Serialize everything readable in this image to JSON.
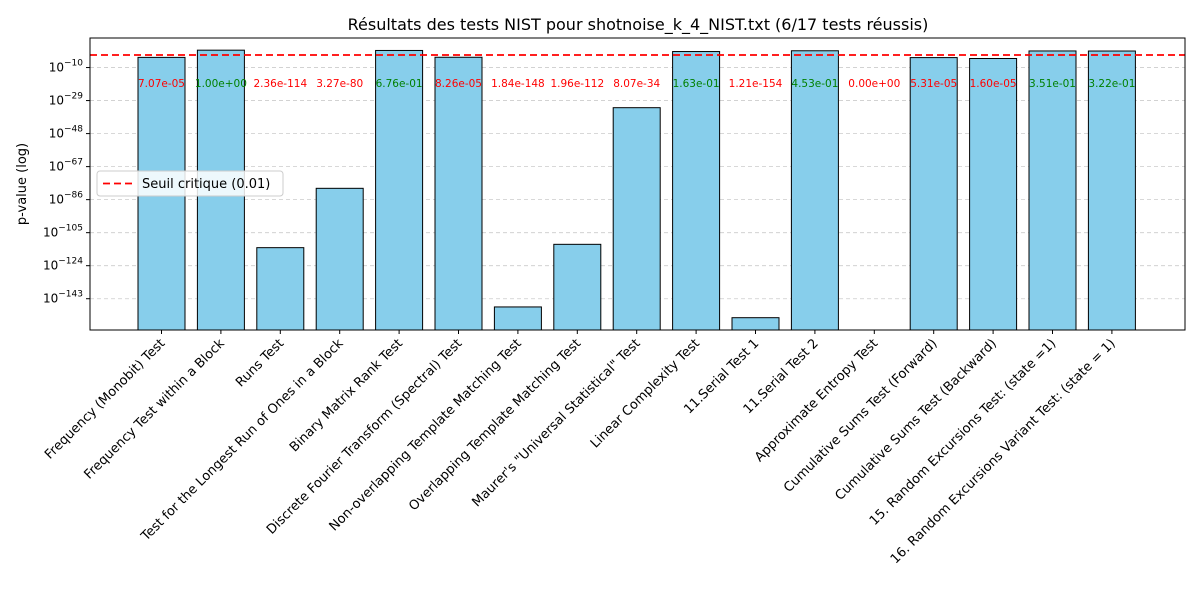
{
  "chart_data": {
    "type": "bar",
    "title": "Résultats des tests NIST pour shotnoise_k_4_NIST.txt (6/17 tests réussis)",
    "xlabel": "",
    "ylabel": "p-value (log)",
    "yscale": "log",
    "ylim_exponent": [
      -161,
      7
    ],
    "yticks_exponent": [
      -143,
      -124,
      -105,
      -86,
      -67,
      -48,
      -29,
      -10
    ],
    "ytick_base": "10",
    "grid": "y-dashed",
    "categories": [
      "Frequency (Monobit) Test",
      "Frequency Test within a Block",
      "Runs Test",
      "Test for the Longest Run of Ones in a Block",
      "Binary Matrix Rank Test",
      "Discrete Fourier Transform (Spectral) Test",
      "Non-overlapping Template Matching Test",
      "Overlapping Template Matching Test",
      "Maurer's \"Universal Statistical\" Test",
      "Linear Complexity Test",
      "11.Serial Test 1",
      "11.Serial Test 2",
      "Approximate Entropy Test",
      "Cumulative Sums Test (Forward)",
      "Cumulative Sums Test (Backward)",
      "15. Random Excursions Test: (state =1)",
      "16. Random Excursions Variant Test: (state = 1)"
    ],
    "values": [
      7.07e-05,
      1.0,
      2.36e-114,
      3.27e-80,
      0.676,
      8.26e-05,
      1.84e-148,
      1.96e-112,
      8.07e-34,
      0.163,
      1.21e-154,
      0.453,
      0.0,
      5.31e-05,
      1.6e-05,
      0.351,
      0.322
    ],
    "value_labels": [
      "7.07e-05",
      "1.00e+00",
      "2.36e-114",
      "3.27e-80",
      "6.76e-01",
      "8.26e-05",
      "1.84e-148",
      "1.96e-112",
      "8.07e-34",
      "1.63e-01",
      "1.21e-154",
      "4.53e-01",
      "0.00e+00",
      "5.31e-05",
      "1.60e-05",
      "3.51e-01",
      "3.22e-01"
    ],
    "passed": [
      false,
      true,
      false,
      false,
      true,
      false,
      false,
      false,
      false,
      true,
      false,
      true,
      false,
      false,
      false,
      true,
      true
    ],
    "threshold": 0.01,
    "legend": {
      "placement": "center-left",
      "entries": [
        "Seuil critique (0.01)"
      ]
    },
    "colors": {
      "bar_fill": "#87ceeb",
      "bar_edge": "#000000",
      "pass": "#008000",
      "fail": "#ff0000",
      "threshold_line": "#ff0000",
      "grid": "#cccccc"
    }
  }
}
